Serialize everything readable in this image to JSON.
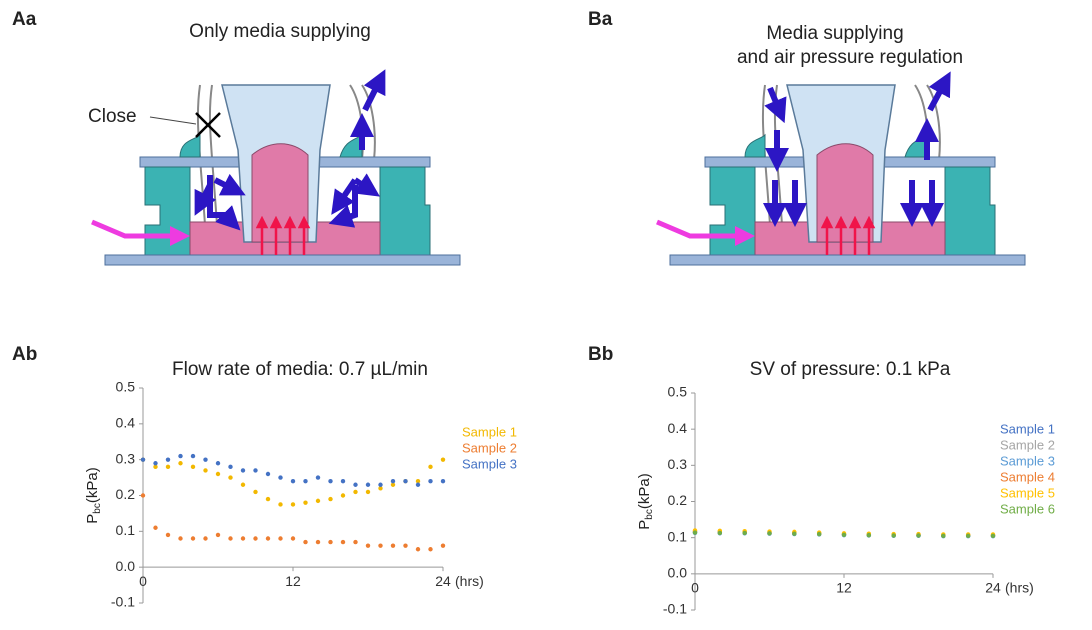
{
  "panels": {
    "Aa": {
      "label": "Aa",
      "title": "Only media supplying",
      "note": "Close"
    },
    "Ba": {
      "label": "Ba",
      "title_line1": "Media supplying",
      "title_line2": "and air pressure regulation"
    },
    "Ab": {
      "label": "Ab"
    },
    "Bb": {
      "label": "Bb"
    }
  },
  "chart_data": [
    {
      "type": "scatter",
      "title": "Flow rate of media: 0.7 µL/min",
      "y_label": "P",
      "y_label_sub": "bc",
      "y_label_unit": "(kPa)",
      "x_unit": "(hrs)",
      "xlim": [
        0,
        24
      ],
      "xticks": [
        0,
        12,
        24
      ],
      "ylim": [
        -0.1,
        0.5
      ],
      "yticks": [
        -0.1,
        {
          "value": 0,
          "label": "0.0"
        },
        0.1,
        0.2,
        0.3,
        0.4,
        0.5
      ],
      "x": [
        0,
        1,
        2,
        3,
        4,
        5,
        6,
        7,
        8,
        9,
        10,
        11,
        12,
        13,
        14,
        15,
        16,
        17,
        18,
        19,
        20,
        21,
        22,
        23,
        24
      ],
      "series": [
        {
          "name": "Sample 1",
          "color": "#f2b800",
          "values": [
            0.3,
            0.28,
            0.28,
            0.29,
            0.28,
            0.27,
            0.26,
            0.25,
            0.23,
            0.21,
            0.19,
            0.175,
            0.175,
            0.18,
            0.185,
            0.19,
            0.2,
            0.21,
            0.21,
            0.22,
            0.23,
            0.24,
            0.24,
            0.28,
            0.3
          ]
        },
        {
          "name": "Sample 2",
          "color": "#ed7d31",
          "values": [
            0.2,
            0.11,
            0.09,
            0.08,
            0.08,
            0.08,
            0.09,
            0.08,
            0.08,
            0.08,
            0.08,
            0.08,
            0.08,
            0.07,
            0.07,
            0.07,
            0.07,
            0.07,
            0.06,
            0.06,
            0.06,
            0.06,
            0.05,
            0.05,
            0.06
          ]
        },
        {
          "name": "Sample 3",
          "color": "#4472c4",
          "values": [
            0.3,
            0.29,
            0.3,
            0.31,
            0.31,
            0.3,
            0.29,
            0.28,
            0.27,
            0.27,
            0.26,
            0.25,
            0.24,
            0.24,
            0.25,
            0.24,
            0.24,
            0.23,
            0.23,
            0.23,
            0.24,
            0.24,
            0.23,
            0.24,
            0.24
          ]
        }
      ]
    },
    {
      "type": "scatter",
      "title": "SV of pressure: 0.1 kPa",
      "y_label": "P",
      "y_label_sub": "bc",
      "y_label_unit": "(kPa)",
      "x_unit": "(hrs)",
      "xlim": [
        0,
        24
      ],
      "xticks": [
        0,
        12,
        24
      ],
      "ylim": [
        -0.1,
        0.5
      ],
      "yticks": [
        -0.1,
        {
          "value": 0,
          "label": "0.0"
        },
        0.1,
        0.2,
        0.3,
        0.4,
        0.5
      ],
      "x": [
        0,
        2,
        4,
        6,
        8,
        10,
        12,
        14,
        16,
        18,
        20,
        22,
        24
      ],
      "series": [
        {
          "name": "Sample 1",
          "color": "#4472c4",
          "values": [
            0.115,
            0.114,
            0.113,
            0.112,
            0.111,
            0.11,
            0.108,
            0.107,
            0.106,
            0.106,
            0.105,
            0.105,
            0.105
          ]
        },
        {
          "name": "Sample 2",
          "color": "#a5a5a5",
          "values": [
            0.116,
            0.115,
            0.114,
            0.113,
            0.112,
            0.111,
            0.109,
            0.108,
            0.107,
            0.107,
            0.106,
            0.106,
            0.106
          ]
        },
        {
          "name": "Sample 3",
          "color": "#5b9bd5",
          "values": [
            0.113,
            0.112,
            0.112,
            0.111,
            0.11,
            0.109,
            0.107,
            0.106,
            0.105,
            0.105,
            0.104,
            0.104,
            0.104
          ]
        },
        {
          "name": "Sample 4",
          "color": "#ed7d31",
          "values": [
            0.118,
            0.117,
            0.116,
            0.115,
            0.114,
            0.112,
            0.11,
            0.109,
            0.108,
            0.108,
            0.107,
            0.107,
            0.107
          ]
        },
        {
          "name": "Sample 5",
          "color": "#ffc000",
          "values": [
            0.12,
            0.119,
            0.118,
            0.117,
            0.116,
            0.114,
            0.112,
            0.111,
            0.11,
            0.11,
            0.109,
            0.109,
            0.109
          ]
        },
        {
          "name": "Sample 6",
          "color": "#70ad47",
          "values": [
            0.114,
            0.113,
            0.113,
            0.112,
            0.111,
            0.11,
            0.108,
            0.107,
            0.106,
            0.106,
            0.105,
            0.105,
            0.105
          ]
        }
      ]
    }
  ]
}
